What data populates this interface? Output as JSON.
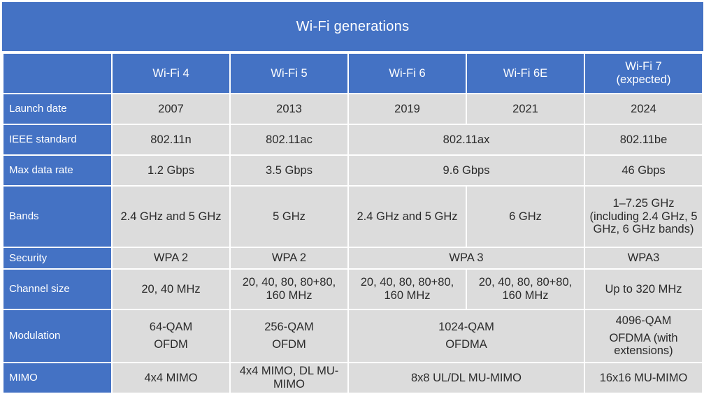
{
  "title": "Wi-Fi generations",
  "columns": [
    "Wi-Fi 4",
    "Wi-Fi 5",
    "Wi-Fi 6",
    "Wi-Fi 6E",
    "Wi-Fi 7\n(expected)"
  ],
  "rows": {
    "launch_date": {
      "label": "Launch date",
      "wifi4": "2007",
      "wifi5": "2013",
      "wifi6": "2019",
      "wifi6e": "2021",
      "wifi7": "2024"
    },
    "ieee_standard": {
      "label": "IEEE standard",
      "wifi4": "802.11n",
      "wifi5": "802.11ac",
      "wifi6_6e": "802.11ax",
      "wifi7": "802.11be"
    },
    "max_data_rate": {
      "label": "Max data rate",
      "wifi4": "1.2 Gbps",
      "wifi5": "3.5 Gbps",
      "wifi6_6e": "9.6 Gbps",
      "wifi7": "46 Gbps"
    },
    "bands": {
      "label": "Bands",
      "wifi4": "2.4 GHz and 5 GHz",
      "wifi5": "5 GHz",
      "wifi6": "2.4 GHz and 5 GHz",
      "wifi6e": "6 GHz",
      "wifi7": "1–7.25 GHz (including 2.4 GHz, 5 GHz, 6 GHz bands)"
    },
    "security": {
      "label": "Security",
      "wifi4": "WPA 2",
      "wifi5": "WPA 2",
      "wifi6_6e": "WPA 3",
      "wifi7": "WPA3"
    },
    "channel_size": {
      "label": "Channel size",
      "wifi4": "20, 40 MHz",
      "wifi5": "20, 40, 80, 80+80, 160 MHz",
      "wifi6": "20, 40, 80, 80+80, 160 MHz",
      "wifi6e": "20, 40, 80, 80+80, 160 MHz",
      "wifi7": "Up to 320 MHz"
    },
    "modulation": {
      "label": "Modulation",
      "wifi4_qam": "64-QAM",
      "wifi4_ofdm": "OFDM",
      "wifi5_qam": "256-QAM",
      "wifi5_ofdm": "OFDM",
      "wifi6_6e_qam": "1024-QAM",
      "wifi6_6e_ofdm": "OFDMA",
      "wifi7_qam": "4096-QAM",
      "wifi7_ofdm": "OFDMA (with extensions)"
    },
    "mimo": {
      "label": "MIMO",
      "wifi4": "4x4 MIMO",
      "wifi5": "4x4 MIMO, DL MU-MIMO",
      "wifi6_6e": "8x8 UL/DL MU-MIMO",
      "wifi7": "16x16 MU-MIMO"
    }
  }
}
